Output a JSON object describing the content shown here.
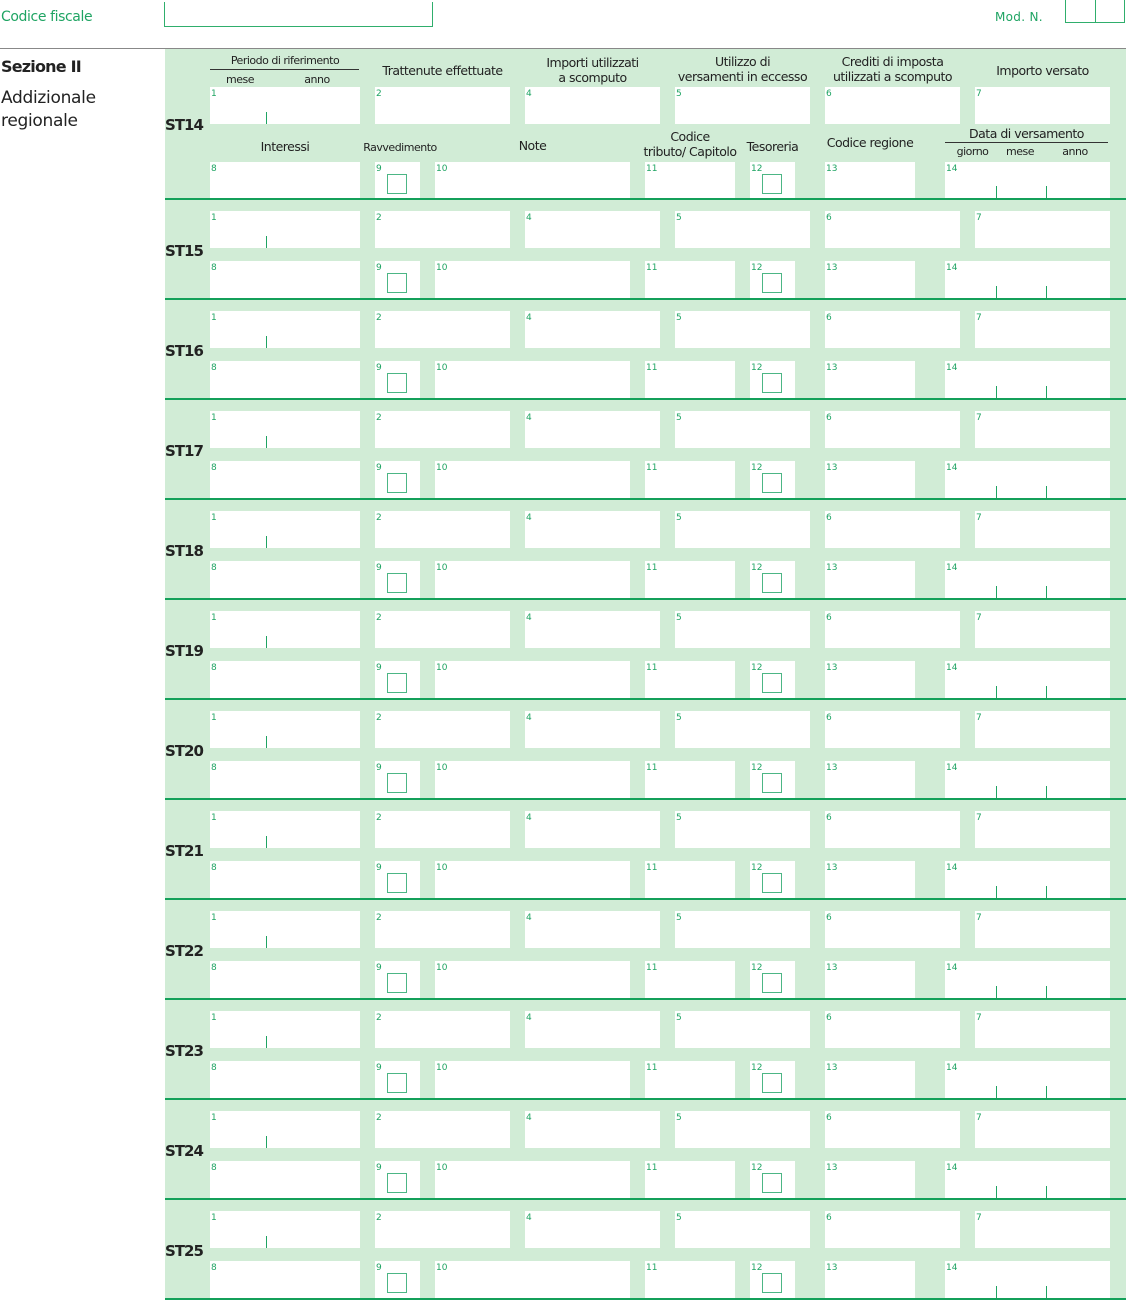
{
  "header": {
    "codice_fiscale_label": "Codice fiscale",
    "codice_fiscale_value": "",
    "mod_n_label": "Mod. N.",
    "mod_n_value": ""
  },
  "section": {
    "title": "Sezione II",
    "subtitle": "Addizionale regionale"
  },
  "column_headers": {
    "periodo": "Periodo di riferimento",
    "mese": "mese",
    "anno": "anno",
    "trattenute": "Trattenute effettuate",
    "importi_1": "Importi utilizzati",
    "importi_2": "a scomputo",
    "utilizzo_1": "Utilizzo di",
    "utilizzo_2": "versamenti in eccesso",
    "crediti_1": "Crediti di imposta",
    "crediti_2": "utilizzati a scomputo",
    "importo_versato": "Importo versato",
    "interessi": "Interessi",
    "ravvedimento": "Ravvedimento",
    "note": "Note",
    "codice_1": "Codice",
    "codice_2": "tributo/ Capitolo",
    "tesoreria": "Tesoreria",
    "codice_regione": "Codice regione",
    "data_versamento": "Data di versamento",
    "giorno": "giorno",
    "mese2": "mese",
    "anno2": "anno"
  },
  "field_numbers": [
    "1",
    "2",
    "4",
    "5",
    "6",
    "7",
    "8",
    "9",
    "10",
    "11",
    "12",
    "13",
    "14"
  ],
  "rows": [
    "ST14",
    "ST15",
    "ST16",
    "ST17",
    "ST18",
    "ST19",
    "ST20",
    "ST21",
    "ST22",
    "ST23",
    "ST24",
    "ST25"
  ],
  "colors": {
    "panel": "#d1ecd6",
    "accent": "#1fa463",
    "rule": "#14a05a"
  }
}
